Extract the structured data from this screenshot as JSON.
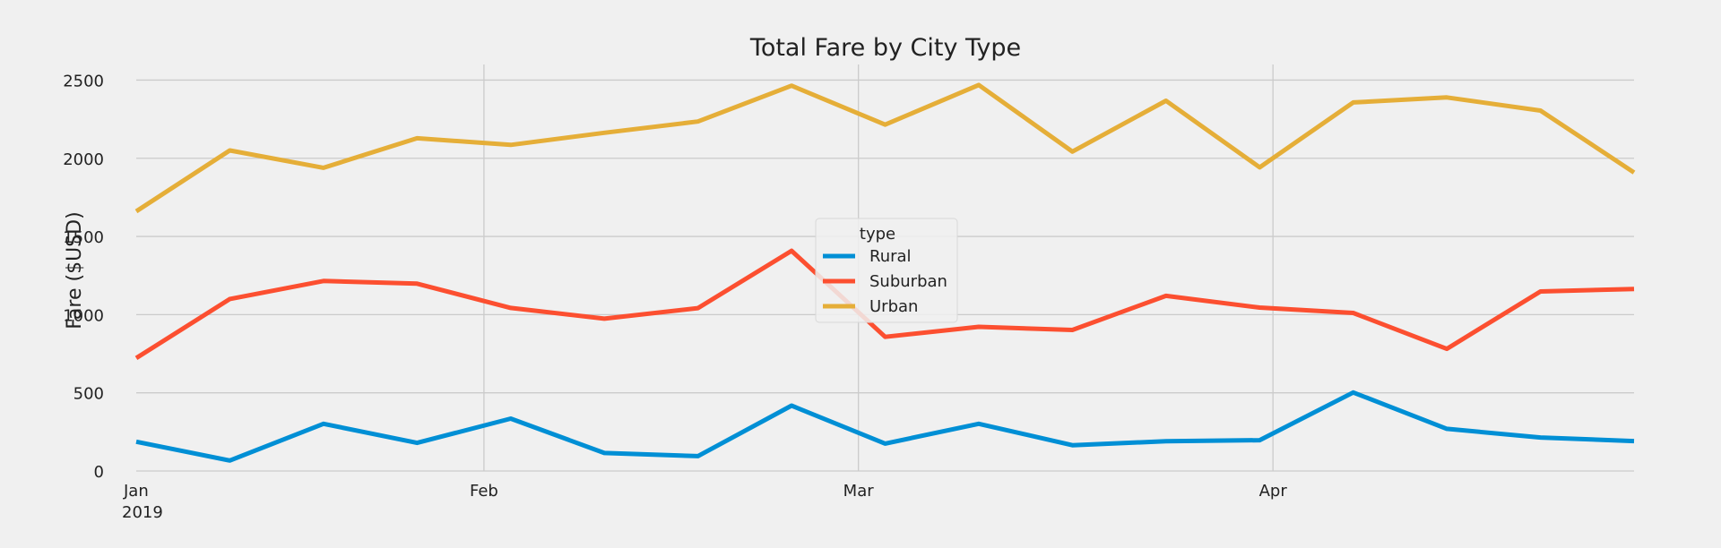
{
  "chart_data": {
    "type": "line",
    "title": "Total Fare by City Type",
    "xlabel": "",
    "ylabel": "Fare ($USD)",
    "ylim": [
      0,
      2600
    ],
    "y_ticks": [
      0,
      500,
      1000,
      1500,
      2000,
      2500
    ],
    "x_start": "2019-01-06",
    "x_end": "2019-04-28",
    "x_tick_labels": [
      {
        "date": "2019-01-01",
        "label": "Jan",
        "sublabel": "2019"
      },
      {
        "date": "2019-02-01",
        "label": "Feb",
        "sublabel": ""
      },
      {
        "date": "2019-03-01",
        "label": "Mar",
        "sublabel": ""
      },
      {
        "date": "2019-04-01",
        "label": "Apr",
        "sublabel": ""
      }
    ],
    "grid": true,
    "legend": {
      "title": "type",
      "placement": "center"
    },
    "x": [
      "2019-01-06",
      "2019-01-13",
      "2019-01-20",
      "2019-01-27",
      "2019-02-03",
      "2019-02-10",
      "2019-02-17",
      "2019-02-24",
      "2019-03-03",
      "2019-03-10",
      "2019-03-17",
      "2019-03-24",
      "2019-03-31",
      "2019-04-07",
      "2019-04-14",
      "2019-04-21",
      "2019-04-28"
    ],
    "series": [
      {
        "name": "Rural",
        "color": "#008fd5",
        "values": [
          187,
          67,
          302,
          180,
          335,
          115,
          95,
          418,
          175,
          302,
          165,
          190,
          197,
          502,
          270,
          214,
          191
        ]
      },
      {
        "name": "Suburban",
        "color": "#fc4f30",
        "values": [
          722,
          1100,
          1215,
          1198,
          1043,
          974,
          1042,
          1408,
          858,
          922,
          902,
          1120,
          1045,
          1011,
          781,
          1148,
          1164
        ]
      },
      {
        "name": "Urban",
        "color": "#e5ae38",
        "values": [
          1661,
          2050,
          1939,
          2128,
          2086,
          2163,
          2235,
          2464,
          2215,
          2469,
          2043,
          2368,
          1942,
          2357,
          2389,
          2305,
          1909
        ]
      }
    ]
  }
}
